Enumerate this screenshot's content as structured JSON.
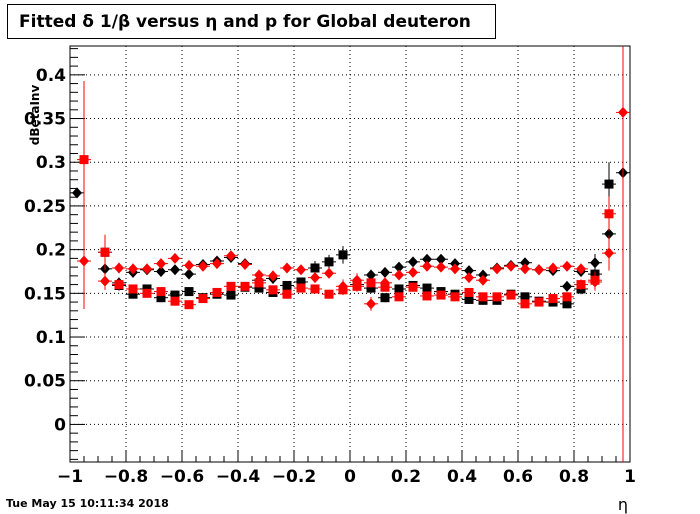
{
  "title": "Fitted δ 1/β versus η and p for Global deuteron",
  "timestamp": "Tue May 15 10:11:34 2018",
  "chart_data": {
    "type": "scatter",
    "title": "Fitted δ 1/β versus η and p for Global deuteron",
    "xlabel": "η",
    "ylabel": "dBetaInv",
    "xlim": [
      -1,
      1
    ],
    "ylim": [
      -0.043,
      0.433
    ],
    "grid": true,
    "xticks": [
      -1,
      -0.8,
      -0.6,
      -0.4,
      -0.2,
      0,
      0.2,
      0.4,
      0.6,
      0.8,
      1
    ],
    "xtick_labels": [
      "−1",
      "−0.8",
      "−0.6",
      "−0.4",
      "−0.2",
      "0",
      "0.2",
      "0.4",
      "0.6",
      "0.8",
      "1"
    ],
    "yticks": [
      0,
      0.05,
      0.1,
      0.15,
      0.2,
      0.25,
      0.3,
      0.35,
      0.4
    ],
    "ytick_labels": [
      "0",
      "0.05",
      "0.1",
      "0.15",
      "0.2",
      "0.25",
      "0.3",
      "0.35",
      "0.4"
    ],
    "colors": {
      "black": "#000000",
      "red": "#ff0000"
    },
    "series": [
      {
        "marker": "diamond",
        "color": "#000000",
        "points": [
          {
            "x": -0.975,
            "y": 0.265,
            "err": 0.005
          },
          {
            "x": -0.875,
            "y": 0.178,
            "err": 0.01
          },
          {
            "x": -0.825,
            "y": 0.162,
            "err": 0.006
          },
          {
            "x": -0.775,
            "y": 0.174,
            "err": 0.006
          },
          {
            "x": -0.725,
            "y": 0.177,
            "err": 0.006
          },
          {
            "x": -0.675,
            "y": 0.175,
            "err": 0.006
          },
          {
            "x": -0.625,
            "y": 0.177,
            "err": 0.005
          },
          {
            "x": -0.575,
            "y": 0.172,
            "err": 0.005
          },
          {
            "x": -0.525,
            "y": 0.183,
            "err": 0.005
          },
          {
            "x": -0.475,
            "y": 0.187,
            "err": 0.005
          },
          {
            "x": -0.425,
            "y": 0.191,
            "err": 0.005
          },
          {
            "x": -0.375,
            "y": 0.184,
            "err": 0.005
          },
          {
            "x": -0.325,
            "y": 0.165,
            "err": 0.006
          },
          {
            "x": -0.275,
            "y": 0.167,
            "err": 0.006
          },
          {
            "x": 0.075,
            "y": 0.171,
            "err": 0.006
          },
          {
            "x": 0.125,
            "y": 0.174,
            "err": 0.005
          },
          {
            "x": 0.175,
            "y": 0.18,
            "err": 0.005
          },
          {
            "x": 0.225,
            "y": 0.186,
            "err": 0.005
          },
          {
            "x": 0.275,
            "y": 0.189,
            "err": 0.005
          },
          {
            "x": 0.325,
            "y": 0.189,
            "err": 0.005
          },
          {
            "x": 0.375,
            "y": 0.184,
            "err": 0.005
          },
          {
            "x": 0.425,
            "y": 0.176,
            "err": 0.005
          },
          {
            "x": 0.475,
            "y": 0.171,
            "err": 0.005
          },
          {
            "x": 0.525,
            "y": 0.179,
            "err": 0.005
          },
          {
            "x": 0.575,
            "y": 0.182,
            "err": 0.005
          },
          {
            "x": 0.625,
            "y": 0.185,
            "err": 0.005
          },
          {
            "x": 0.675,
            "y": 0.177,
            "err": 0.005
          },
          {
            "x": 0.725,
            "y": 0.176,
            "err": 0.005
          },
          {
            "x": 0.775,
            "y": 0.158,
            "err": 0.006
          },
          {
            "x": 0.825,
            "y": 0.175,
            "err": 0.006
          },
          {
            "x": 0.875,
            "y": 0.185,
            "err": 0.01
          },
          {
            "x": 0.925,
            "y": 0.218,
            "err": 0.015
          },
          {
            "x": 0.975,
            "y": 0.288,
            "err": 0.01
          }
        ]
      },
      {
        "marker": "square",
        "color": "#000000",
        "points": [
          {
            "x": -0.875,
            "y": 0.197,
            "err": 0.012
          },
          {
            "x": -0.825,
            "y": 0.159,
            "err": 0.006
          },
          {
            "x": -0.775,
            "y": 0.149,
            "err": 0.005
          },
          {
            "x": -0.725,
            "y": 0.155,
            "err": 0.005
          },
          {
            "x": -0.675,
            "y": 0.145,
            "err": 0.005
          },
          {
            "x": -0.625,
            "y": 0.148,
            "err": 0.005
          },
          {
            "x": -0.575,
            "y": 0.152,
            "err": 0.005
          },
          {
            "x": -0.525,
            "y": 0.145,
            "err": 0.005
          },
          {
            "x": -0.475,
            "y": 0.149,
            "err": 0.005
          },
          {
            "x": -0.425,
            "y": 0.148,
            "err": 0.005
          },
          {
            "x": -0.375,
            "y": 0.157,
            "err": 0.005
          },
          {
            "x": -0.325,
            "y": 0.156,
            "err": 0.005
          },
          {
            "x": -0.275,
            "y": 0.151,
            "err": 0.005
          },
          {
            "x": -0.225,
            "y": 0.159,
            "err": 0.005
          },
          {
            "x": -0.175,
            "y": 0.163,
            "err": 0.005
          },
          {
            "x": -0.125,
            "y": 0.179,
            "err": 0.008
          },
          {
            "x": -0.075,
            "y": 0.186,
            "err": 0.008
          },
          {
            "x": -0.025,
            "y": 0.194,
            "err": 0.01
          },
          {
            "x": 0.025,
            "y": 0.16,
            "err": 0.008
          },
          {
            "x": 0.075,
            "y": 0.156,
            "err": 0.006
          },
          {
            "x": 0.125,
            "y": 0.145,
            "err": 0.005
          },
          {
            "x": 0.175,
            "y": 0.155,
            "err": 0.005
          },
          {
            "x": 0.225,
            "y": 0.159,
            "err": 0.005
          },
          {
            "x": 0.275,
            "y": 0.156,
            "err": 0.005
          },
          {
            "x": 0.325,
            "y": 0.152,
            "err": 0.005
          },
          {
            "x": 0.375,
            "y": 0.149,
            "err": 0.005
          },
          {
            "x": 0.425,
            "y": 0.143,
            "err": 0.005
          },
          {
            "x": 0.475,
            "y": 0.142,
            "err": 0.005
          },
          {
            "x": 0.525,
            "y": 0.142,
            "err": 0.005
          },
          {
            "x": 0.575,
            "y": 0.149,
            "err": 0.005
          },
          {
            "x": 0.625,
            "y": 0.146,
            "err": 0.005
          },
          {
            "x": 0.675,
            "y": 0.141,
            "err": 0.005
          },
          {
            "x": 0.725,
            "y": 0.14,
            "err": 0.005
          },
          {
            "x": 0.775,
            "y": 0.138,
            "err": 0.005
          },
          {
            "x": 0.825,
            "y": 0.155,
            "err": 0.006
          },
          {
            "x": 0.875,
            "y": 0.172,
            "err": 0.01
          },
          {
            "x": 0.925,
            "y": 0.275,
            "err": 0.025
          }
        ]
      },
      {
        "marker": "diamond",
        "color": "#ff0000",
        "points": [
          {
            "x": -0.95,
            "y": 0.187,
            "err": 0.055
          },
          {
            "x": -0.875,
            "y": 0.164,
            "err": 0.01
          },
          {
            "x": -0.825,
            "y": 0.179,
            "err": 0.006
          },
          {
            "x": -0.775,
            "y": 0.178,
            "err": 0.006
          },
          {
            "x": -0.725,
            "y": 0.178,
            "err": 0.006
          },
          {
            "x": -0.675,
            "y": 0.184,
            "err": 0.006
          },
          {
            "x": -0.625,
            "y": 0.19,
            "err": 0.005
          },
          {
            "x": -0.575,
            "y": 0.182,
            "err": 0.005
          },
          {
            "x": -0.525,
            "y": 0.181,
            "err": 0.005
          },
          {
            "x": -0.475,
            "y": 0.184,
            "err": 0.005
          },
          {
            "x": -0.425,
            "y": 0.193,
            "err": 0.005
          },
          {
            "x": -0.375,
            "y": 0.183,
            "err": 0.005
          },
          {
            "x": -0.325,
            "y": 0.171,
            "err": 0.006
          },
          {
            "x": -0.275,
            "y": 0.17,
            "err": 0.006
          },
          {
            "x": -0.225,
            "y": 0.179,
            "err": 0.005
          },
          {
            "x": -0.175,
            "y": 0.177,
            "err": 0.005
          },
          {
            "x": -0.125,
            "y": 0.168,
            "err": 0.006
          },
          {
            "x": -0.075,
            "y": 0.173,
            "err": 0.006
          },
          {
            "x": -0.025,
            "y": 0.158,
            "err": 0.008
          },
          {
            "x": 0.025,
            "y": 0.165,
            "err": 0.008
          },
          {
            "x": 0.075,
            "y": 0.138,
            "err": 0.008
          },
          {
            "x": 0.125,
            "y": 0.162,
            "err": 0.006
          },
          {
            "x": 0.175,
            "y": 0.171,
            "err": 0.005
          },
          {
            "x": 0.225,
            "y": 0.174,
            "err": 0.005
          },
          {
            "x": 0.275,
            "y": 0.181,
            "err": 0.005
          },
          {
            "x": 0.325,
            "y": 0.18,
            "err": 0.005
          },
          {
            "x": 0.375,
            "y": 0.178,
            "err": 0.005
          },
          {
            "x": 0.425,
            "y": 0.168,
            "err": 0.005
          },
          {
            "x": 0.475,
            "y": 0.165,
            "err": 0.005
          },
          {
            "x": 0.525,
            "y": 0.178,
            "err": 0.005
          },
          {
            "x": 0.575,
            "y": 0.181,
            "err": 0.005
          },
          {
            "x": 0.625,
            "y": 0.178,
            "err": 0.005
          },
          {
            "x": 0.675,
            "y": 0.177,
            "err": 0.005
          },
          {
            "x": 0.725,
            "y": 0.179,
            "err": 0.005
          },
          {
            "x": 0.775,
            "y": 0.181,
            "err": 0.005
          },
          {
            "x": 0.825,
            "y": 0.178,
            "err": 0.006
          },
          {
            "x": 0.875,
            "y": 0.163,
            "err": 0.01
          },
          {
            "x": 0.925,
            "y": 0.196,
            "err": 0.02
          },
          {
            "x": 0.975,
            "y": 0.357,
            "err": 0.5
          }
        ]
      },
      {
        "marker": "square",
        "color": "#ff0000",
        "points": [
          {
            "x": -0.95,
            "y": 0.303,
            "err": 0.09
          },
          {
            "x": -0.875,
            "y": 0.197,
            "err": 0.02
          },
          {
            "x": -0.825,
            "y": 0.16,
            "err": 0.006
          },
          {
            "x": -0.775,
            "y": 0.155,
            "err": 0.005
          },
          {
            "x": -0.725,
            "y": 0.15,
            "err": 0.005
          },
          {
            "x": -0.675,
            "y": 0.152,
            "err": 0.005
          },
          {
            "x": -0.625,
            "y": 0.141,
            "err": 0.005
          },
          {
            "x": -0.575,
            "y": 0.137,
            "err": 0.005
          },
          {
            "x": -0.525,
            "y": 0.144,
            "err": 0.005
          },
          {
            "x": -0.475,
            "y": 0.151,
            "err": 0.005
          },
          {
            "x": -0.425,
            "y": 0.158,
            "err": 0.005
          },
          {
            "x": -0.375,
            "y": 0.158,
            "err": 0.005
          },
          {
            "x": -0.325,
            "y": 0.162,
            "err": 0.005
          },
          {
            "x": -0.275,
            "y": 0.154,
            "err": 0.005
          },
          {
            "x": -0.225,
            "y": 0.149,
            "err": 0.005
          },
          {
            "x": -0.175,
            "y": 0.156,
            "err": 0.005
          },
          {
            "x": -0.125,
            "y": 0.155,
            "err": 0.005
          },
          {
            "x": -0.075,
            "y": 0.149,
            "err": 0.005
          },
          {
            "x": -0.025,
            "y": 0.154,
            "err": 0.006
          },
          {
            "x": 0.025,
            "y": 0.158,
            "err": 0.006
          },
          {
            "x": 0.075,
            "y": 0.162,
            "err": 0.005
          },
          {
            "x": 0.125,
            "y": 0.157,
            "err": 0.005
          },
          {
            "x": 0.175,
            "y": 0.146,
            "err": 0.005
          },
          {
            "x": 0.225,
            "y": 0.157,
            "err": 0.005
          },
          {
            "x": 0.275,
            "y": 0.147,
            "err": 0.005
          },
          {
            "x": 0.325,
            "y": 0.148,
            "err": 0.005
          },
          {
            "x": 0.375,
            "y": 0.146,
            "err": 0.005
          },
          {
            "x": 0.425,
            "y": 0.151,
            "err": 0.005
          },
          {
            "x": 0.475,
            "y": 0.146,
            "err": 0.005
          },
          {
            "x": 0.525,
            "y": 0.146,
            "err": 0.005
          },
          {
            "x": 0.575,
            "y": 0.148,
            "err": 0.005
          },
          {
            "x": 0.625,
            "y": 0.138,
            "err": 0.005
          },
          {
            "x": 0.675,
            "y": 0.14,
            "err": 0.005
          },
          {
            "x": 0.725,
            "y": 0.144,
            "err": 0.005
          },
          {
            "x": 0.775,
            "y": 0.146,
            "err": 0.005
          },
          {
            "x": 0.825,
            "y": 0.16,
            "err": 0.006
          },
          {
            "x": 0.875,
            "y": 0.165,
            "err": 0.01
          },
          {
            "x": 0.925,
            "y": 0.241,
            "err": 0.02
          }
        ]
      }
    ]
  }
}
